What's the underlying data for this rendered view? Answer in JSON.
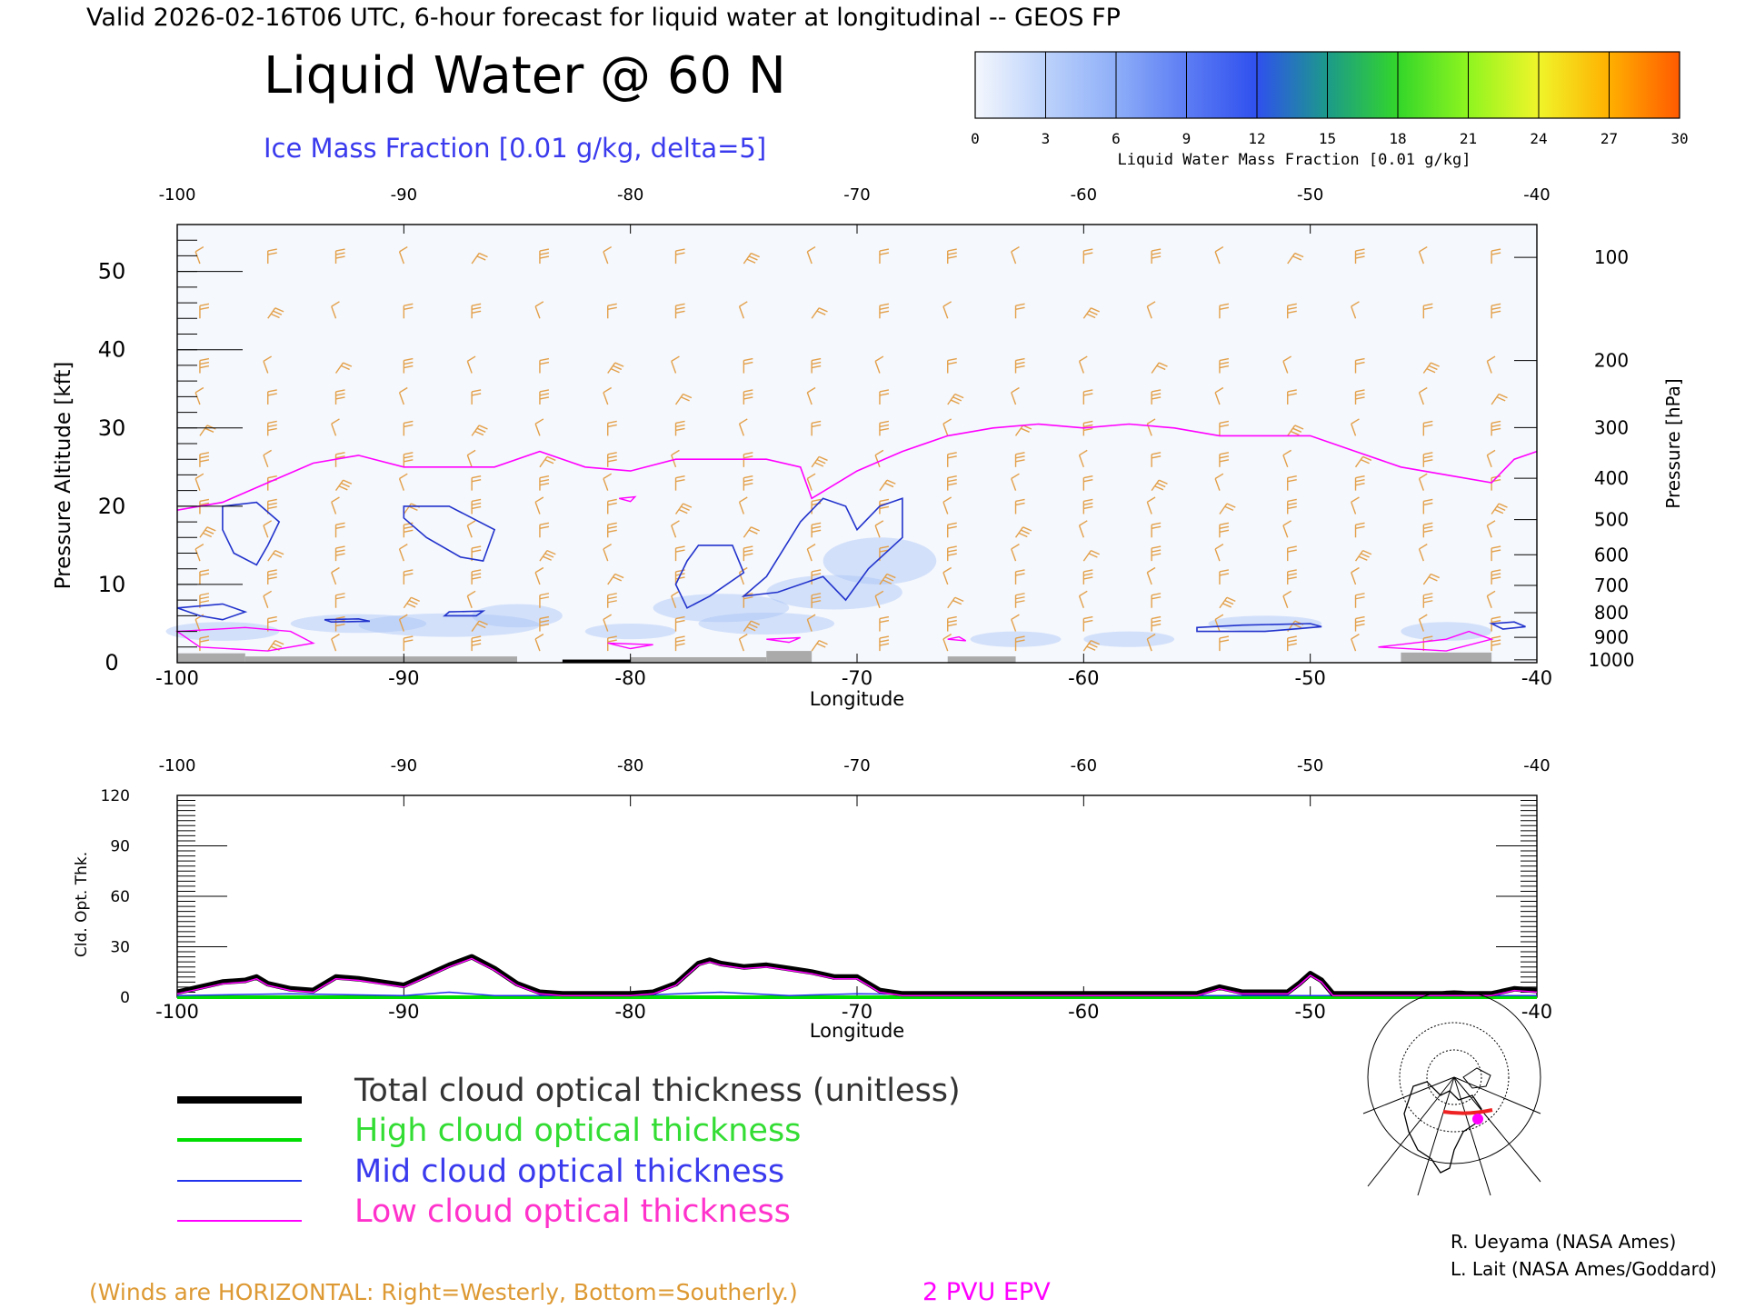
{
  "header": {
    "valid_line": "Valid 2026-02-16T06 UTC, 6-hour forecast for liquid water at longitudinal -- GEOS FP",
    "title": "Liquid Water @ 60 N",
    "subtitle": "Ice Mass Fraction [0.01 g/kg, delta=5]"
  },
  "colorbar": {
    "ticks": [
      "0",
      "3",
      "6",
      "9",
      "12",
      "15",
      "18",
      "21",
      "24",
      "27",
      "30"
    ],
    "label": "Liquid Water Mass Fraction [0.01 g/kg]",
    "colors": [
      "#f4f7fd",
      "#bcd2fb",
      "#8eaef8",
      "#5c7cf4",
      "#2f50ee",
      "#1c9a8a",
      "#33d62a",
      "#8ff51f",
      "#f0f52a",
      "#ffb000",
      "#ff5a00"
    ]
  },
  "chart_data": [
    {
      "type": "line",
      "title": "Liquid Water @ 60 N",
      "xlabel": "Longitude",
      "ylabel": "Pressure Altitude [kft]",
      "y2label": "Pressure [hPa]",
      "xlim": [
        -100,
        -40
      ],
      "ylim": [
        0,
        56
      ],
      "x_ticks": [
        "-100",
        "-90",
        "-80",
        "-70",
        "-60",
        "-50",
        "-40"
      ],
      "y_ticks": [
        "0",
        "10",
        "20",
        "30",
        "40",
        "50"
      ],
      "pressure_ticks": [
        "100",
        "200",
        "300",
        "400",
        "500",
        "600",
        "700",
        "800",
        "900",
        "1000"
      ],
      "series": [
        {
          "name": "2 PVU EPV",
          "color": "#ff00ff",
          "x": [
            -100,
            -98,
            -96,
            -94,
            -92,
            -90,
            -88,
            -86,
            -84,
            -82,
            -80,
            -78,
            -76,
            -74,
            -72.5,
            -72,
            -70,
            -68,
            -66,
            -64,
            -62,
            -60,
            -58,
            -56,
            -54,
            -52,
            -50,
            -48,
            -46,
            -44,
            -42,
            -41,
            -40
          ],
          "y": [
            19.5,
            20.5,
            23,
            25.5,
            26.5,
            25,
            25,
            25,
            27,
            25,
            24.5,
            26,
            26,
            26,
            25,
            21,
            24.5,
            27,
            29,
            30,
            30.5,
            30,
            30.5,
            30,
            29,
            29,
            29,
            27,
            25,
            24,
            23,
            26,
            27
          ]
        }
      ],
      "ice_contours": "closed blue contours of ice mass fraction (delta=5) in the mid/lower troposphere",
      "wind_barbs": "orange horizontal wind barbs on a longitude-altitude grid",
      "liquid_water_shading": "light blue liquid water patches below about 8 kft"
    },
    {
      "type": "line",
      "xlabel": "Longitude",
      "ylabel": "Cld. Opt. Thk.",
      "xlim": [
        -100,
        -40
      ],
      "ylim": [
        0,
        120
      ],
      "x_ticks": [
        "-100",
        "-90",
        "-80",
        "-70",
        "-60",
        "-50",
        "-40"
      ],
      "y_ticks": [
        "0",
        "30",
        "60",
        "90",
        "120"
      ],
      "series": [
        {
          "name": "Total cloud optical thickness (unitless)",
          "color": "#000000",
          "x": [
            -100,
            -99,
            -98,
            -97,
            -96.5,
            -96,
            -95,
            -94,
            -93,
            -92,
            -91,
            -90,
            -89,
            -88,
            -87,
            -86,
            -85,
            -84,
            -83,
            -82,
            -81,
            -80,
            -79,
            -78,
            -77,
            -76.5,
            -76,
            -75,
            -74,
            -73,
            -72,
            -71,
            -70,
            -69,
            -68,
            -60,
            -55,
            -54,
            -53,
            -51,
            -50.5,
            -50,
            -49.5,
            -49,
            -45,
            -42,
            -41,
            -40
          ],
          "y": [
            3,
            6,
            9,
            10,
            12,
            8,
            5,
            4,
            12,
            11,
            9,
            7,
            13,
            19,
            24,
            17,
            8,
            3,
            2,
            2,
            2,
            2,
            3,
            8,
            20,
            22,
            20,
            18,
            19,
            17,
            15,
            12,
            12,
            4,
            2,
            2,
            2,
            6,
            3,
            3,
            8,
            14,
            10,
            2,
            2,
            2,
            5,
            4
          ]
        },
        {
          "name": "High cloud optical thickness",
          "color": "#00dd00",
          "x": [
            -100,
            -40
          ],
          "y": [
            0,
            0
          ]
        },
        {
          "name": "Mid cloud optical thickness",
          "color": "#2233ee",
          "x": [
            -100,
            -95,
            -90,
            -88,
            -86,
            -80,
            -76,
            -73,
            -70,
            -60,
            -50,
            -40
          ],
          "y": [
            1,
            2,
            1,
            3,
            1,
            1,
            3,
            1,
            2,
            1,
            1,
            1
          ]
        },
        {
          "name": "Low cloud optical thickness",
          "color": "#ff00ff",
          "x": [
            -100,
            -99,
            -98,
            -97,
            -96.5,
            -96,
            -95,
            -94,
            -93,
            -92,
            -91,
            -90,
            -89,
            -88,
            -87,
            -86,
            -85,
            -84,
            -83,
            -82,
            -81,
            -80,
            -79,
            -78,
            -77,
            -76.5,
            -76,
            -75,
            -74,
            -73,
            -72,
            -71,
            -70,
            -69,
            -68,
            -60,
            -55,
            -54,
            -53,
            -51,
            -50.5,
            -50,
            -49.5,
            -49,
            -45,
            -42,
            -41,
            -40
          ],
          "y": [
            2,
            5,
            8,
            9,
            11,
            7,
            4,
            3,
            11,
            10,
            8,
            6,
            12,
            18,
            23,
            16,
            7,
            2,
            1,
            1,
            1,
            1,
            2,
            7,
            19,
            21,
            19,
            17,
            18,
            16,
            14,
            11,
            11,
            3,
            1,
            1,
            1,
            5,
            2,
            2,
            7,
            13,
            9,
            1,
            1,
            1,
            4,
            3
          ]
        }
      ]
    }
  ],
  "legend": {
    "total": "Total cloud optical thickness (unitless)",
    "high": "High cloud optical thickness",
    "mid": "Mid cloud optical thickness",
    "low": "Low cloud optical thickness"
  },
  "credits": {
    "line1": "R. Ueyama (NASA Ames)",
    "line2": "L. Lait (NASA Ames/Goddard)"
  },
  "footer": {
    "winds_note": "(Winds are HORIZONTAL: Right=Westerly, Bottom=Southerly.)",
    "epv_label": "2 PVU EPV"
  }
}
